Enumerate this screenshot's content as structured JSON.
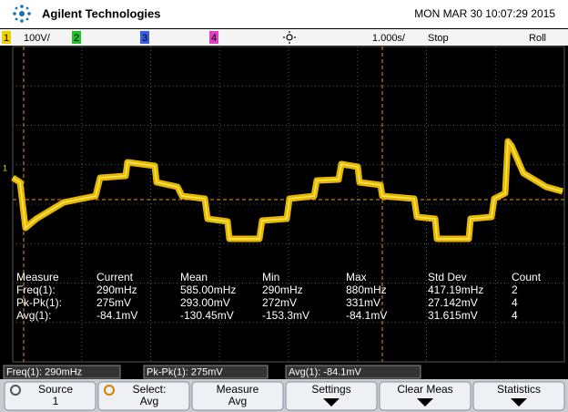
{
  "header": {
    "brand": "Agilent Technologies",
    "datetime": "MON MAR 30 10:07:29 2015"
  },
  "channel_bar": {
    "ch1": "1",
    "ch1_scale": "100V/",
    "ch2": "2",
    "ch3": "3",
    "ch4": "4",
    "timebase": "1.000s/",
    "state": "Stop",
    "mode": "Roll"
  },
  "trace_marker": "1",
  "measurements": {
    "columns": [
      "Measure",
      "Current",
      "Mean",
      "Min",
      "Max",
      "Std Dev",
      "Count"
    ],
    "rows": [
      [
        "Freq(1):",
        "290mHz",
        "585.00mHz",
        "290mHz",
        "880mHz",
        "417.19mHz",
        "2"
      ],
      [
        "Pk-Pk(1):",
        "275mV",
        "293.00mV",
        "272mV",
        "331mV",
        "27.142mV",
        "4"
      ],
      [
        "Avg(1):",
        "-84.1mV",
        "-130.45mV",
        "-153.3mV",
        "-84.1mV",
        "31.615mV",
        "4"
      ]
    ]
  },
  "status": [
    "Freq(1): 290mHz",
    "Pk-Pk(1): 275mV",
    "Avg(1): -84.1mV"
  ],
  "softkeys": [
    {
      "label": "Source",
      "value": "1"
    },
    {
      "label": "Select:",
      "value": "Avg"
    },
    {
      "label": "Measure",
      "value": "Avg"
    },
    {
      "label": "Settings"
    },
    {
      "label": "Clear Meas"
    },
    {
      "label": "Statistics"
    }
  ]
}
